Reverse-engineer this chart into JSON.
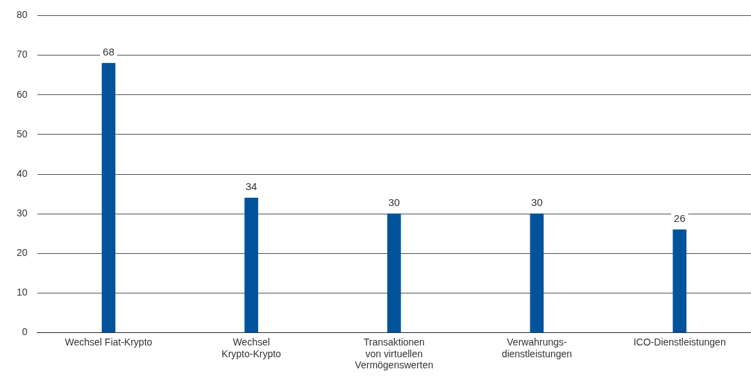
{
  "chart_data": {
    "type": "bar",
    "categories": [
      "Wechsel Fiat-Krypto",
      "Wechsel\nKrypto-Krypto",
      "Transaktionen\nvon virtuellen\nVermögenswerten",
      "Verwahrungs-\ndienstleistungen",
      "ICO-Dienstleistungen"
    ],
    "values": [
      68,
      34,
      30,
      30,
      26
    ],
    "color": "#00539b",
    "ylim": [
      0,
      80
    ],
    "yticks": [
      0,
      10,
      20,
      30,
      40,
      50,
      60,
      70,
      80
    ],
    "grid": "y",
    "legend": false,
    "data_labels": true
  }
}
